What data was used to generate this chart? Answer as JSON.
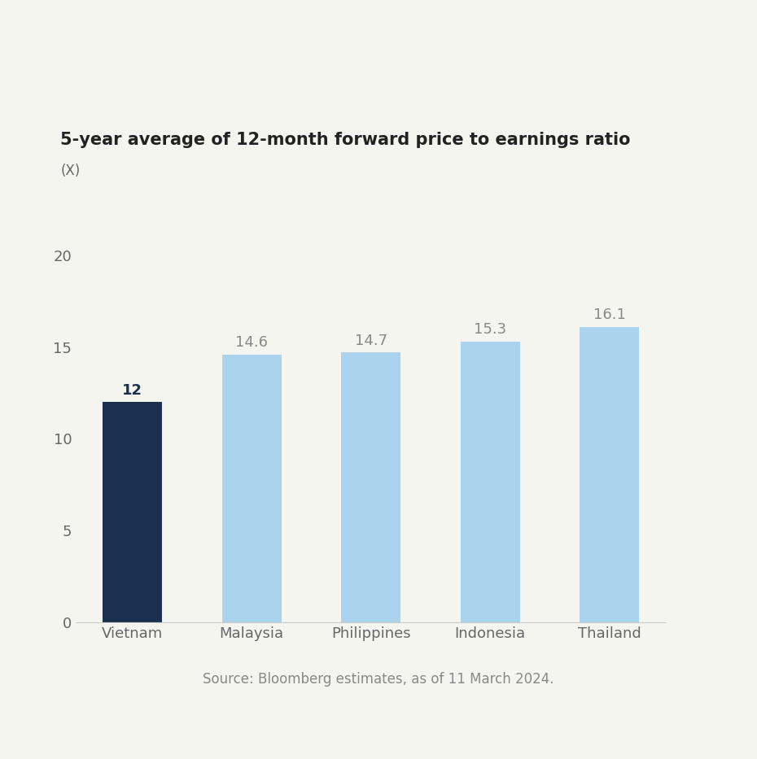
{
  "title": "5-year average of 12-month forward price to earnings ratio",
  "ylabel": "(X)",
  "categories": [
    "Vietnam",
    "Malaysia",
    "Philippines",
    "Indonesia",
    "Thailand"
  ],
  "values": [
    12,
    14.6,
    14.7,
    15.3,
    16.1
  ],
  "bar_colors": [
    "#1b2f4e",
    "#aad4ee",
    "#aad4ee",
    "#aad4ee",
    "#aad4ee"
  ],
  "label_colors": [
    "#1b2f4e",
    "#888888",
    "#888888",
    "#888888",
    "#888888"
  ],
  "label_bold": [
    true,
    false,
    false,
    false,
    false
  ],
  "value_labels": [
    "12",
    "14.6",
    "14.7",
    "15.3",
    "16.1"
  ],
  "yticks": [
    0,
    5,
    10,
    15,
    20
  ],
  "ylim": [
    0,
    21.5
  ],
  "source_text": "Source: Bloomberg estimates, as of 11 March 2024.",
  "title_fontsize": 15,
  "tick_label_fontsize": 13,
  "bar_label_fontsize": 13,
  "ylabel_fontsize": 12,
  "source_fontsize": 12,
  "background_color": "#f5f5f0"
}
